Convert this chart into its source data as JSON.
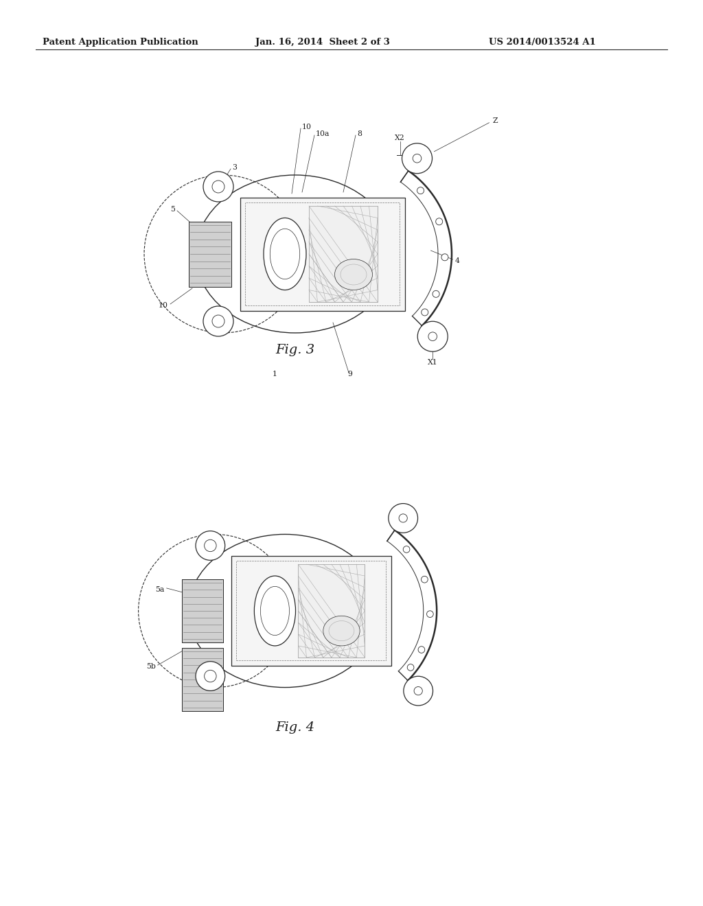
{
  "header_left": "Patent Application Publication",
  "header_mid": "Jan. 16, 2014  Sheet 2 of 3",
  "header_right": "US 2014/0013524 A1",
  "fig3_caption": "Fig. 3",
  "fig4_caption": "Fig. 4",
  "bg_color": "#ffffff",
  "line_color": "#2a2a2a",
  "gray_line": "#777777",
  "light_gray": "#aaaaaa"
}
